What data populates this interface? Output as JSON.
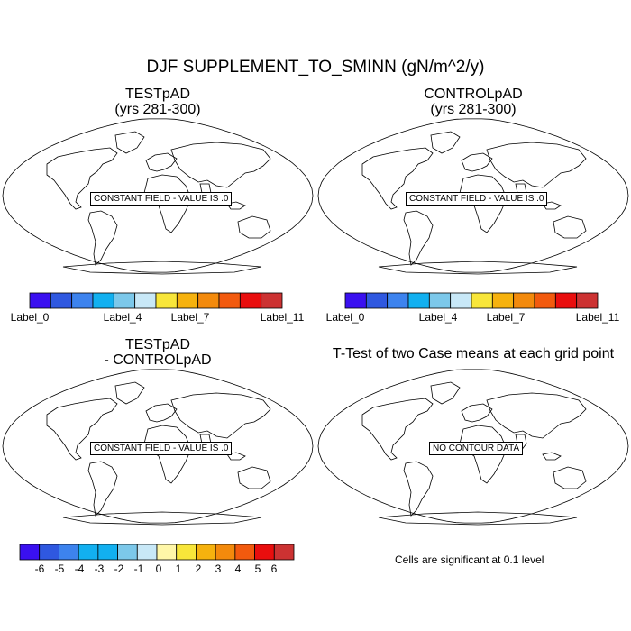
{
  "main_title": "DJF SUPPLEMENT_TO_SMINN (gN/m^2/y)",
  "panels": [
    {
      "title_line1": "TESTpAD",
      "title_line2": "(yrs 281-300)",
      "message": "CONSTANT FIELD - VALUE IS .0"
    },
    {
      "title_line1": "CONTROLpAD",
      "title_line2": "(yrs 281-300)",
      "message": "CONSTANT FIELD - VALUE IS .0"
    },
    {
      "title_line1": "TESTpAD",
      "title_line2": "- CONTROLpAD",
      "message": "CONSTANT FIELD - VALUE IS .0"
    },
    {
      "title_line1": "T-Test of two Case means at each grid point",
      "title_line2": "",
      "message": "NO CONTOUR DATA"
    }
  ],
  "colorbar_top": {
    "colors": [
      "#3a10f0",
      "#2f58e0",
      "#3d83ee",
      "#12b0f0",
      "#7cc8ea",
      "#c8e8f7",
      "#f8e63a",
      "#f6b20e",
      "#f38a0c",
      "#f25a0e",
      "#e90e0e",
      "#cc3232"
    ],
    "labels": [
      "Label_0",
      "Label_4",
      "Label_7",
      "Label_11"
    ]
  },
  "colorbar_bottom": {
    "colors": [
      "#3a10f0",
      "#2f58e0",
      "#3d83ee",
      "#12b0f0",
      "#12b0f0",
      "#7cc8ea",
      "#c8e8f7",
      "#fff7a8",
      "#f8e63a",
      "#f6b20e",
      "#f38a0c",
      "#f25a0e",
      "#e90e0e",
      "#cc3232"
    ],
    "labels": [
      "-6",
      "-5",
      "-4",
      "-3",
      "-2",
      "-1",
      "0",
      "1",
      "2",
      "3",
      "4",
      "5",
      "6"
    ]
  },
  "significance_note": "Cells are significant at 0.1 level"
}
